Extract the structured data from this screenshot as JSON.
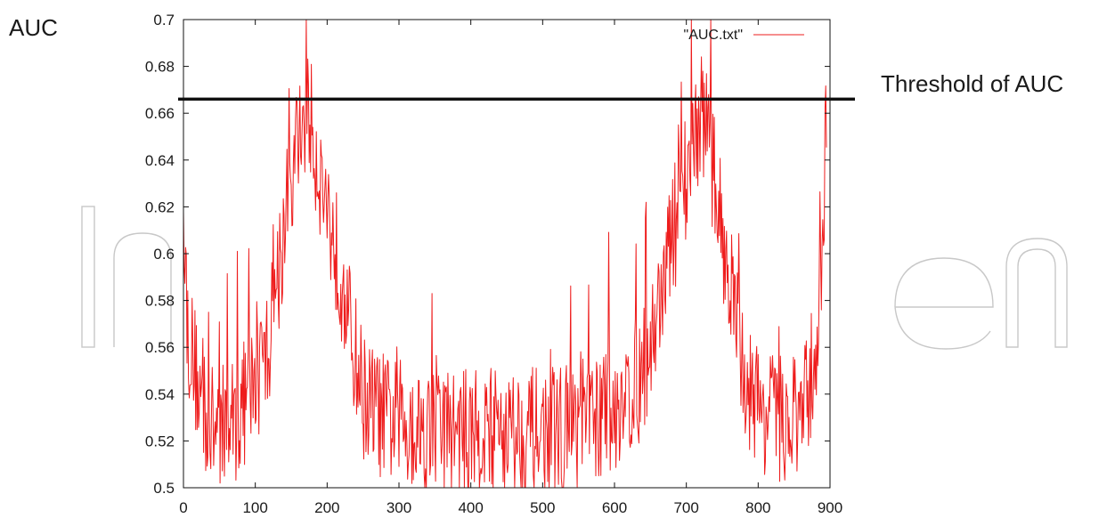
{
  "chart_data": {
    "type": "line",
    "ylabel": "AUC",
    "xlabel": "",
    "title": "",
    "xlim": [
      0,
      900
    ],
    "ylim": [
      0.5,
      0.7
    ],
    "x_ticks": [
      0,
      100,
      200,
      300,
      400,
      500,
      600,
      700,
      800,
      900
    ],
    "y_ticks": [
      0.5,
      0.52,
      0.54,
      0.56,
      0.58,
      0.6,
      0.62,
      0.64,
      0.66,
      0.68,
      0.7
    ],
    "x_tick_labels": [
      "0",
      "100",
      "200",
      "300",
      "400",
      "500",
      "600",
      "700",
      "800",
      "900"
    ],
    "y_tick_labels": [
      "0.5",
      "0.52",
      "0.54",
      "0.56",
      "0.58",
      "0.6",
      "0.62",
      "0.64",
      "0.66",
      "0.68",
      "0.7"
    ],
    "grid": false,
    "legend_position": "top-right",
    "series": [
      {
        "name": "\"AUC.txt\"",
        "color": "#ee1c1c",
        "x": [
          0,
          5,
          10,
          20,
          30,
          40,
          50,
          60,
          70,
          80,
          90,
          100,
          110,
          120,
          125,
          130,
          140,
          150,
          160,
          165,
          170,
          175,
          180,
          190,
          200,
          210,
          220,
          230,
          240,
          250,
          260,
          280,
          300,
          320,
          340,
          360,
          380,
          400,
          420,
          440,
          460,
          480,
          500,
          520,
          540,
          560,
          580,
          600,
          620,
          640,
          650,
          660,
          670,
          680,
          690,
          700,
          710,
          715,
          720,
          725,
          730,
          740,
          750,
          760,
          770,
          780,
          790,
          800,
          820,
          840,
          860,
          870,
          880,
          890,
          895
        ],
        "values": [
          0.64,
          0.57,
          0.56,
          0.545,
          0.53,
          0.525,
          0.527,
          0.525,
          0.53,
          0.532,
          0.54,
          0.545,
          0.55,
          0.565,
          0.575,
          0.59,
          0.61,
          0.63,
          0.648,
          0.655,
          0.66,
          0.66,
          0.65,
          0.635,
          0.62,
          0.605,
          0.59,
          0.57,
          0.555,
          0.54,
          0.535,
          0.53,
          0.528,
          0.527,
          0.525,
          0.525,
          0.524,
          0.523,
          0.524,
          0.525,
          0.525,
          0.524,
          0.524,
          0.525,
          0.526,
          0.528,
          0.53,
          0.535,
          0.54,
          0.55,
          0.56,
          0.575,
          0.59,
          0.605,
          0.62,
          0.635,
          0.648,
          0.655,
          0.66,
          0.658,
          0.65,
          0.63,
          0.61,
          0.59,
          0.57,
          0.55,
          0.54,
          0.535,
          0.53,
          0.528,
          0.53,
          0.54,
          0.56,
          0.6,
          0.66
        ]
      }
    ],
    "threshold": {
      "value": 0.666,
      "label": "Threshold of AUC",
      "color": "#111111"
    }
  }
}
